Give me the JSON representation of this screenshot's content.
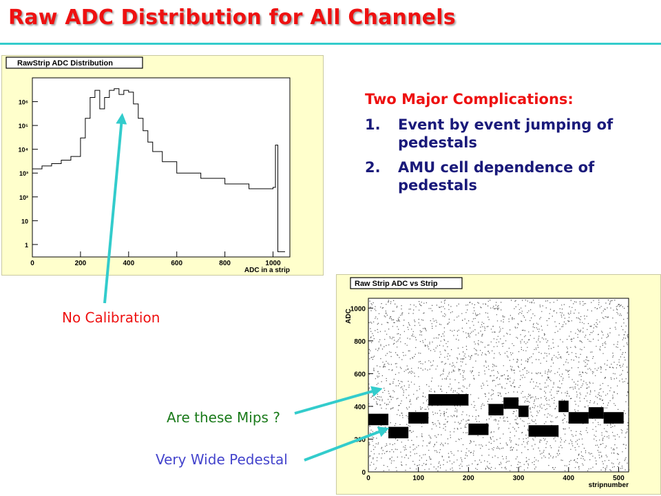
{
  "title": "Raw ADC Distribution for All Channels",
  "complications": {
    "heading": "Two Major Complications:",
    "items": [
      {
        "num": "1.",
        "text": "Event by event jumping of pedestals"
      },
      {
        "num": "2.",
        "text": "AMU cell dependence of pedestals"
      }
    ]
  },
  "annotations": {
    "no_calibration": "No Calibration",
    "mips": "Are these Mips ?",
    "wide_pedestal": "Very Wide Pedestal"
  },
  "colors": {
    "title": "#ee1111",
    "complication_text": "#1a1a7a",
    "no_calibration": "#ee1111",
    "mips": "#1a7a1a",
    "wide_pedestal": "#4444cc",
    "arrow": "#33cccc",
    "panel_bg": "#ffffcc",
    "plot_bg": "#ffffff"
  },
  "chart_data": [
    {
      "type": "histogram",
      "title": "RawStrip ADC Distribution",
      "xlabel": "ADC in a strip",
      "ylabel": "",
      "xlim": [
        0,
        1070
      ],
      "ylim": [
        0.3,
        10000000
      ],
      "log_y": true,
      "grid": false,
      "x_ticks": [
        0,
        200,
        400,
        600,
        800,
        1000
      ],
      "y_ticks": [
        {
          "value": 1,
          "label": "1"
        },
        {
          "value": 10,
          "label": "10"
        },
        {
          "value": 100,
          "label": "10²"
        },
        {
          "value": 1000,
          "label": "10³"
        },
        {
          "value": 10000,
          "label": "10⁴"
        },
        {
          "value": 100000,
          "label": "10⁵"
        },
        {
          "value": 1000000,
          "label": "10⁶"
        }
      ],
      "x": [
        0,
        40,
        80,
        120,
        160,
        200,
        220,
        240,
        260,
        280,
        300,
        320,
        340,
        360,
        380,
        400,
        420,
        440,
        460,
        480,
        500,
        540,
        600,
        700,
        800,
        900,
        1000,
        1010,
        1020,
        1040
      ],
      "y": [
        1500,
        2000,
        2500,
        3500,
        5000,
        30000,
        200000,
        1500000,
        3000000,
        500000,
        1500000,
        3000000,
        3500000,
        2000000,
        3000000,
        2500000,
        800000,
        200000,
        60000,
        20000,
        8000,
        3000,
        1000,
        600,
        350,
        220,
        250,
        15000,
        0.5,
        0.5
      ]
    },
    {
      "type": "scatter",
      "title": "Raw Strip ADC vs Strip",
      "xlabel": "stripnumber",
      "ylabel": "ADC",
      "xlim": [
        0,
        520
      ],
      "ylim": [
        0,
        1060
      ],
      "grid": false,
      "x_ticks": [
        0,
        100,
        200,
        300,
        400,
        500
      ],
      "y_ticks": [
        0,
        200,
        400,
        600,
        800,
        1000
      ],
      "pedestal_bands": [
        {
          "x": [
            0,
            40
          ],
          "y": 320
        },
        {
          "x": [
            40,
            80
          ],
          "y": 240
        },
        {
          "x": [
            80,
            120
          ],
          "y": 330
        },
        {
          "x": [
            120,
            200
          ],
          "y": 440
        },
        {
          "x": [
            200,
            240
          ],
          "y": 260
        },
        {
          "x": [
            240,
            270
          ],
          "y": 380
        },
        {
          "x": [
            270,
            300
          ],
          "y": 420
        },
        {
          "x": [
            300,
            320
          ],
          "y": 370
        },
        {
          "x": [
            320,
            380
          ],
          "y": 250
        },
        {
          "x": [
            380,
            400
          ],
          "y": 400
        },
        {
          "x": [
            400,
            440
          ],
          "y": 330
        },
        {
          "x": [
            440,
            470
          ],
          "y": 360
        },
        {
          "x": [
            470,
            510
          ],
          "y": 330
        }
      ]
    }
  ]
}
